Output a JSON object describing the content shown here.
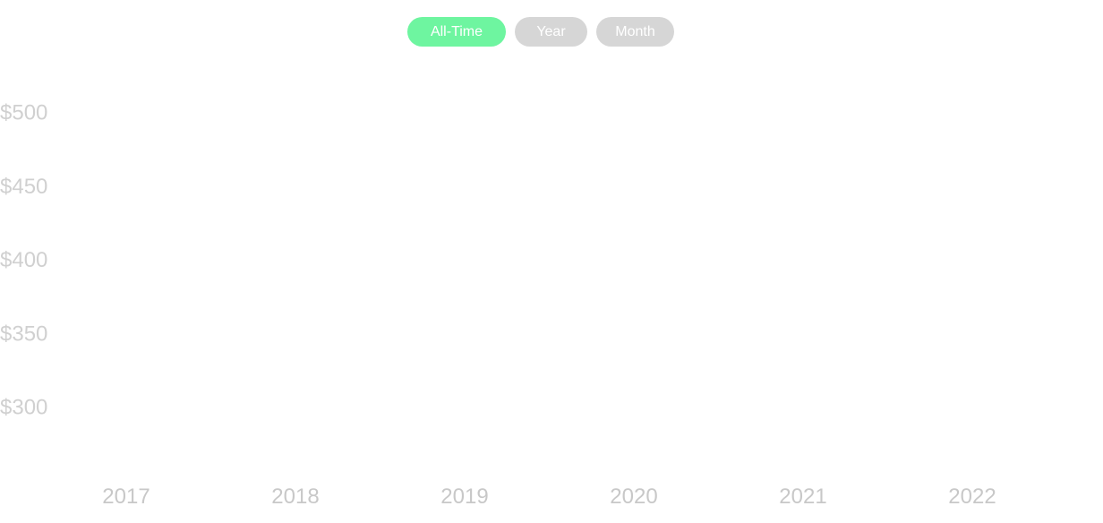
{
  "range_toggle": {
    "options": [
      {
        "label": "All-Time",
        "active": true
      },
      {
        "label": "Year",
        "active": false
      },
      {
        "label": "Month",
        "active": false
      }
    ],
    "active_color": "#6ef5a0",
    "inactive_color": "#d6d6d6"
  },
  "chart_data": {
    "type": "line",
    "title": "",
    "xlabel": "",
    "ylabel": "",
    "x": [
      "2017",
      "2018",
      "2019",
      "2020",
      "2021",
      "2022"
    ],
    "y_ticks": [
      "$300",
      "$350",
      "$400",
      "$450",
      "$500"
    ],
    "ylim": [
      300,
      500
    ],
    "series": [],
    "grid": false,
    "legend": "none"
  }
}
